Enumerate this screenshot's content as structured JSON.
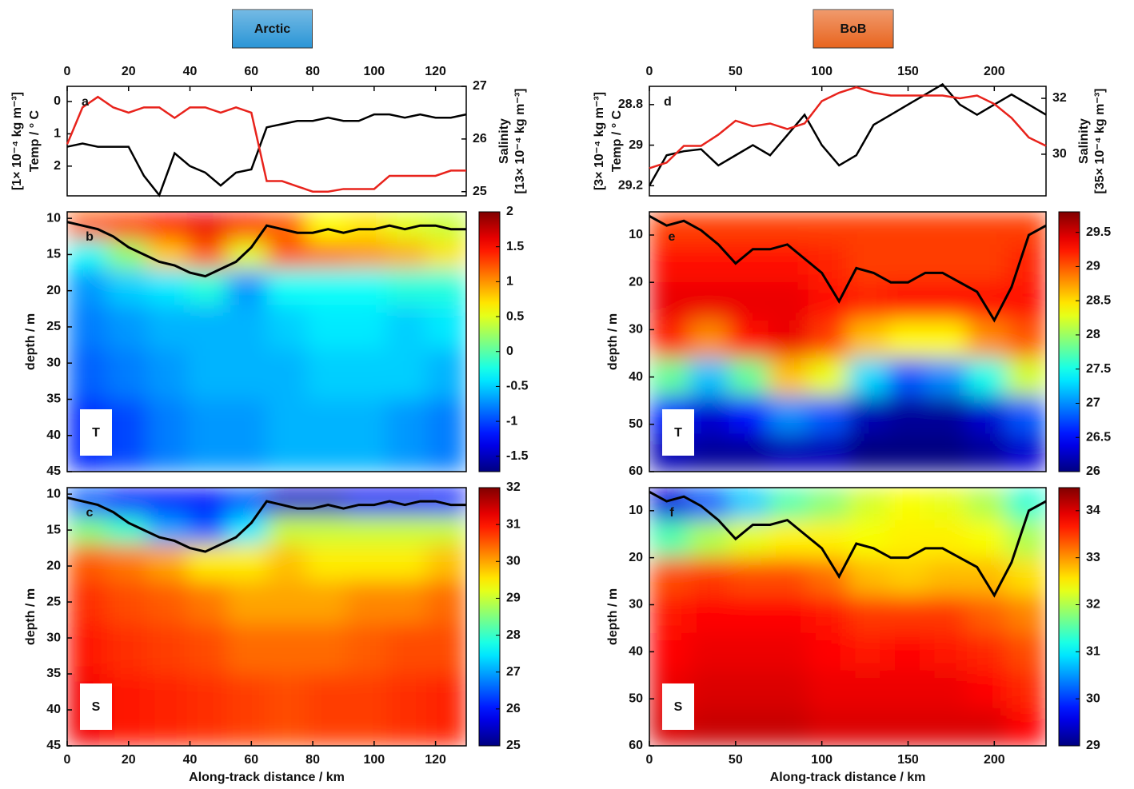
{
  "chart_data": [
    {
      "type": "line",
      "title": "Arctic",
      "title_box_color": "#2a95d6",
      "panel_label": "a",
      "xaxis": "top",
      "xlim": [
        0,
        130
      ],
      "xticks": [
        0,
        20,
        40,
        60,
        80,
        100,
        120
      ],
      "ylim": [
        -0.47,
        2.92
      ],
      "y_inverted": true,
      "yticks": [
        0,
        1,
        2
      ],
      "ylabel": "Temp / ° C",
      "ylabel_unit": "[1× 10⁻⁴ kg m⁻³]",
      "y2lim": [
        24.92,
        27
      ],
      "y2ticks": [
        25,
        26,
        27
      ],
      "y2label": "Salinity",
      "y2label_unit": "[13× 10⁻⁴ kg m⁻³]",
      "y2_color": "#e8231c",
      "x": [
        0,
        5,
        10,
        15,
        20,
        25,
        30,
        35,
        40,
        45,
        50,
        55,
        60,
        65,
        70,
        75,
        80,
        85,
        90,
        95,
        100,
        105,
        110,
        115,
        120,
        125,
        130
      ],
      "series": [
        {
          "color": "#000000",
          "values": [
            1.4,
            1.3,
            1.4,
            1.4,
            1.4,
            2.3,
            2.9,
            1.6,
            2.0,
            2.2,
            2.6,
            2.2,
            2.1,
            0.8,
            0.7,
            0.6,
            0.6,
            0.5,
            0.6,
            0.6,
            0.4,
            0.4,
            0.5,
            0.4,
            0.5,
            0.5,
            0.4
          ]
        },
        {
          "color": "#e8231c",
          "axis": "y2",
          "values": [
            25.9,
            26.6,
            26.8,
            26.6,
            26.5,
            26.6,
            26.6,
            26.4,
            26.6,
            26.6,
            26.5,
            26.6,
            26.5,
            25.2,
            25.2,
            25.1,
            25.0,
            25.0,
            25.05,
            25.05,
            25.05,
            25.3,
            25.3,
            25.3,
            25.3,
            25.4,
            25.4
          ]
        }
      ]
    },
    {
      "type": "heatmap",
      "panel_label": "b",
      "tag": "T",
      "ylabel": "depth / m",
      "xlim": [
        0,
        130
      ],
      "ylim": [
        9.1,
        45
      ],
      "yticks": [
        10,
        15,
        20,
        25,
        30,
        35,
        40,
        45
      ],
      "x_edges": [
        0,
        13,
        26,
        39,
        52,
        65,
        78,
        91,
        104,
        117,
        130
      ],
      "depth_edges": [
        9.1,
        13,
        17,
        22,
        28,
        35,
        45
      ],
      "z": [
        [
          1.2,
          1.3,
          1.5,
          1.6,
          1.4,
          1.2,
          0.6,
          0.7,
          0.5,
          0.4
        ],
        [
          -0.3,
          0.2,
          0.8,
          1.2,
          0.5,
          1.2,
          1.1,
          1.0,
          0.9,
          0.7
        ],
        [
          -0.7,
          -0.5,
          -0.4,
          -0.2,
          -0.7,
          -0.3,
          -0.3,
          -0.3,
          -0.2,
          -0.2
        ],
        [
          -0.8,
          -0.7,
          -0.6,
          -0.6,
          -0.6,
          -0.5,
          -0.4,
          -0.4,
          -0.5,
          -0.4
        ],
        [
          -0.9,
          -0.8,
          -0.7,
          -0.6,
          -0.6,
          -0.6,
          -0.5,
          -0.5,
          -0.5,
          -0.6
        ],
        [
          -1.1,
          -1.0,
          -0.8,
          -0.7,
          -0.7,
          -0.6,
          -0.6,
          -0.6,
          -0.7,
          -0.8
        ]
      ],
      "clim": [
        -1.72,
        2
      ],
      "cticks": [
        -1.5,
        -1,
        -0.5,
        0,
        0.5,
        1,
        1.5,
        2
      ],
      "colormap": "jet",
      "line": {
        "color": "#000000",
        "x": [
          0,
          5,
          10,
          15,
          20,
          25,
          30,
          35,
          40,
          45,
          50,
          55,
          60,
          65,
          70,
          75,
          80,
          85,
          90,
          95,
          100,
          105,
          110,
          115,
          120,
          125,
          130
        ],
        "values": [
          10.5,
          11,
          11.5,
          12.5,
          14,
          15,
          16,
          16.5,
          17.5,
          18,
          17,
          16,
          14,
          11,
          11.5,
          12,
          12,
          11.5,
          12,
          11.5,
          11.5,
          11,
          11.5,
          11,
          11,
          11.5,
          11.5
        ]
      }
    },
    {
      "type": "heatmap",
      "panel_label": "c",
      "tag": "S",
      "ylabel": "depth / m",
      "xlabel": "Along-track distance / km",
      "xaxis": "bottom",
      "xlim": [
        0,
        130
      ],
      "xticks": [
        0,
        20,
        40,
        60,
        80,
        100,
        120
      ],
      "ylim": [
        9.1,
        45
      ],
      "yticks": [
        10,
        15,
        20,
        25,
        30,
        35,
        40,
        45
      ],
      "x_edges": [
        0,
        13,
        26,
        39,
        52,
        65,
        78,
        91,
        104,
        117,
        130
      ],
      "depth_edges": [
        9.1,
        13,
        17,
        22,
        28,
        35,
        45
      ],
      "z": [
        [
          26.5,
          26,
          26,
          26,
          26.5,
          25.5,
          25.5,
          25.8,
          25.8,
          26
        ],
        [
          28.5,
          28,
          27,
          26.5,
          27.5,
          29,
          29,
          29,
          29,
          29
        ],
        [
          30.5,
          30.3,
          30,
          29.5,
          29.5,
          29.8,
          29.5,
          29.5,
          29.5,
          29.8
        ],
        [
          30.8,
          30.6,
          30.5,
          30.3,
          30,
          30,
          30,
          30.2,
          30.2,
          30.4
        ],
        [
          31,
          30.8,
          30.7,
          30.6,
          30.4,
          30.4,
          30.4,
          30.5,
          30.6,
          30.6
        ],
        [
          31.2,
          31,
          30.9,
          30.8,
          30.7,
          30.6,
          30.7,
          30.7,
          30.8,
          30.9
        ]
      ],
      "clim": [
        25,
        32
      ],
      "cticks": [
        25,
        26,
        27,
        28,
        29,
        30,
        31,
        32
      ],
      "colormap": "jet",
      "line": {
        "color": "#000000",
        "x": [
          0,
          5,
          10,
          15,
          20,
          25,
          30,
          35,
          40,
          45,
          50,
          55,
          60,
          65,
          70,
          75,
          80,
          85,
          90,
          95,
          100,
          105,
          110,
          115,
          120,
          125,
          130
        ],
        "values": [
          10.5,
          11,
          11.5,
          12.5,
          14,
          15,
          16,
          16.5,
          17.5,
          18,
          17,
          16,
          14,
          11,
          11.5,
          12,
          12,
          11.5,
          12,
          11.5,
          11.5,
          11,
          11.5,
          11,
          11,
          11.5,
          11.5
        ]
      }
    },
    {
      "type": "line",
      "title": "BoB",
      "title_box_color": "#e8641e",
      "panel_label": "d",
      "xaxis": "top",
      "xlim": [
        0,
        230
      ],
      "xticks": [
        0,
        50,
        100,
        150,
        200
      ],
      "ylim": [
        28.71,
        29.25
      ],
      "y_inverted": true,
      "yticks": [
        28.8,
        29,
        29.2
      ],
      "ylabel": "Temp / ° C",
      "ylabel_unit": "[3× 10⁻⁴ kg m⁻³]",
      "y2lim": [
        28.51,
        32.43
      ],
      "y2ticks": [
        30,
        32
      ],
      "y2label": "Salinity",
      "y2label_unit": "[35× 10⁻⁴ kg m⁻³]",
      "y2_color": "#e8231c",
      "x": [
        0,
        10,
        20,
        30,
        40,
        50,
        60,
        70,
        80,
        90,
        100,
        110,
        120,
        130,
        140,
        150,
        160,
        170,
        180,
        190,
        200,
        210,
        220,
        230
      ],
      "series": [
        {
          "color": "#000000",
          "values": [
            29.2,
            29.05,
            29.03,
            29.02,
            29.1,
            29.05,
            29.0,
            29.05,
            28.95,
            28.85,
            29.0,
            29.1,
            29.05,
            28.9,
            28.85,
            28.8,
            28.75,
            28.7,
            28.8,
            28.85,
            28.8,
            28.75,
            28.8,
            28.85
          ]
        },
        {
          "color": "#e8231c",
          "axis": "y2",
          "values": [
            29.5,
            29.7,
            30.3,
            30.3,
            30.7,
            31.2,
            31.0,
            31.1,
            30.9,
            31.1,
            31.9,
            32.2,
            32.4,
            32.2,
            32.1,
            32.1,
            32.1,
            32.1,
            32.0,
            32.1,
            31.8,
            31.3,
            30.6,
            30.3
          ]
        }
      ]
    },
    {
      "type": "heatmap",
      "panel_label": "e",
      "tag": "T",
      "ylabel": "depth / m",
      "xlim": [
        0,
        230
      ],
      "ylim": [
        5.1,
        60
      ],
      "yticks": [
        10,
        20,
        30,
        40,
        50,
        60
      ],
      "x_edges": [
        0,
        23,
        46,
        69,
        92,
        115,
        138,
        161,
        184,
        207,
        230
      ],
      "depth_edges": [
        5.1,
        12,
        20,
        28,
        36,
        44,
        52,
        60
      ],
      "z": [
        [
          29.1,
          29.1,
          29.1,
          29.1,
          29.1,
          29.1,
          29.1,
          29.1,
          29.1,
          29.1
        ],
        [
          29.3,
          29.3,
          29.3,
          29.3,
          29.2,
          29.1,
          29.1,
          29.1,
          29.1,
          29.2
        ],
        [
          29.4,
          29.4,
          29.4,
          29.4,
          29.3,
          29.2,
          29.3,
          29.3,
          29.3,
          29.3
        ],
        [
          29.2,
          28.8,
          29.3,
          29.4,
          29.1,
          28.6,
          28.4,
          28.4,
          28.8,
          29.0
        ],
        [
          27.8,
          27.2,
          27.8,
          28.6,
          28.3,
          27.3,
          26.8,
          27.0,
          27.5,
          28.2
        ],
        [
          26.6,
          26.3,
          26.5,
          27.0,
          26.8,
          26.2,
          26.1,
          26.1,
          26.3,
          26.8
        ],
        [
          26.2,
          26.1,
          26.1,
          26.2,
          26.2,
          26.0,
          26.0,
          26.0,
          26.1,
          26.3
        ]
      ],
      "clim": [
        26,
        29.8
      ],
      "cticks": [
        26,
        26.5,
        27,
        27.5,
        28,
        28.5,
        29,
        29.5
      ],
      "colormap": "jet",
      "line": {
        "color": "#000000",
        "x": [
          0,
          10,
          20,
          30,
          40,
          50,
          60,
          70,
          80,
          90,
          100,
          110,
          120,
          130,
          140,
          150,
          160,
          170,
          180,
          190,
          200,
          210,
          220,
          230
        ],
        "values": [
          6,
          8,
          7,
          9,
          12,
          16,
          13,
          13,
          12,
          15,
          18,
          24,
          17,
          18,
          20,
          20,
          18,
          18,
          20,
          22,
          28,
          21,
          10,
          8
        ]
      }
    },
    {
      "type": "heatmap",
      "panel_label": "f",
      "tag": "S",
      "ylabel": "depth / m",
      "xlabel": "Along-track distance / km",
      "xaxis": "bottom",
      "xlim": [
        0,
        230
      ],
      "xticks": [
        0,
        50,
        100,
        150,
        200
      ],
      "ylim": [
        5.1,
        60
      ],
      "yticks": [
        10,
        20,
        30,
        40,
        50,
        60
      ],
      "x_edges": [
        0,
        23,
        46,
        69,
        92,
        115,
        138,
        161,
        184,
        207,
        230
      ],
      "depth_edges": [
        5.1,
        12,
        20,
        28,
        36,
        44,
        52,
        60
      ],
      "z": [
        [
          29.5,
          30.2,
          30.8,
          31.5,
          31.8,
          32.2,
          32.4,
          32.3,
          32.0,
          31.3
        ],
        [
          31.5,
          32.0,
          32.3,
          32.5,
          32.5,
          32.4,
          32.5,
          32.5,
          32.4,
          32.0
        ],
        [
          33.4,
          33.5,
          33.4,
          33.4,
          33.2,
          32.8,
          32.7,
          32.8,
          32.8,
          32.6
        ],
        [
          33.7,
          33.8,
          33.8,
          33.8,
          33.7,
          33.5,
          33.5,
          33.5,
          33.3,
          33.1
        ],
        [
          33.8,
          33.9,
          33.9,
          33.9,
          33.8,
          33.7,
          33.8,
          33.7,
          33.6,
          33.4
        ],
        [
          33.9,
          34.0,
          34.0,
          34.0,
          33.9,
          33.9,
          33.9,
          33.9,
          33.8,
          33.6
        ],
        [
          34.0,
          34.1,
          34.1,
          34.1,
          34.0,
          34.0,
          34.0,
          34.0,
          34.0,
          33.8
        ]
      ],
      "clim": [
        29,
        34.49
      ],
      "cticks": [
        29,
        30,
        31,
        32,
        33,
        34
      ],
      "colormap": "jet",
      "line": {
        "color": "#000000",
        "x": [
          0,
          10,
          20,
          30,
          40,
          50,
          60,
          70,
          80,
          90,
          100,
          110,
          120,
          130,
          140,
          150,
          160,
          170,
          180,
          190,
          200,
          210,
          220,
          230
        ],
        "values": [
          6,
          8,
          7,
          9,
          12,
          16,
          13,
          13,
          12,
          15,
          18,
          24,
          17,
          18,
          20,
          20,
          18,
          18,
          20,
          22,
          28,
          21,
          10,
          8
        ]
      }
    }
  ]
}
